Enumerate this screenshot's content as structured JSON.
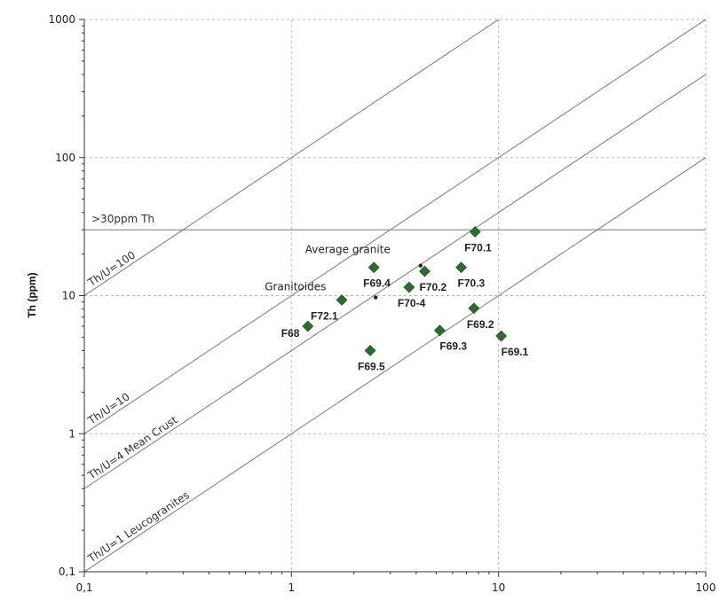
{
  "chart_data": {
    "type": "scatter",
    "title": "",
    "xlabel": "",
    "ylabel": "Th (ppm)",
    "xscale": "log",
    "yscale": "log",
    "xlim": [
      0.1,
      100
    ],
    "ylim": [
      0.1,
      1000
    ],
    "grid": true,
    "x_ticks": [
      {
        "value": 0.1,
        "label": "0,1"
      },
      {
        "value": 1,
        "label": "1"
      },
      {
        "value": 10,
        "label": "10"
      },
      {
        "value": 100,
        "label": "100"
      }
    ],
    "y_ticks": [
      {
        "value": 0.1,
        "label": "0,1"
      },
      {
        "value": 1,
        "label": "1"
      },
      {
        "value": 10,
        "label": "10"
      },
      {
        "value": 100,
        "label": "100"
      },
      {
        "value": 1000,
        "label": "1000"
      }
    ],
    "marker_color": "#2e6b2e",
    "points": [
      {
        "label": "F70.1",
        "x": 7.7,
        "y": 29
      },
      {
        "label": "F69.4",
        "x": 2.5,
        "y": 16
      },
      {
        "label": "F70.2",
        "x": 4.4,
        "y": 15
      },
      {
        "label": "F70.3",
        "x": 6.6,
        "y": 16
      },
      {
        "label": "F70-4",
        "x": 3.7,
        "y": 11.5
      },
      {
        "label": "F72.1",
        "x": 1.75,
        "y": 9.3
      },
      {
        "label": "F69.2",
        "x": 7.6,
        "y": 8.1
      },
      {
        "label": "F68",
        "x": 1.2,
        "y": 6
      },
      {
        "label": "F69.3",
        "x": 5.2,
        "y": 5.6
      },
      {
        "label": "F69.1",
        "x": 10.3,
        "y": 5.1
      },
      {
        "label": "F69.5",
        "x": 2.4,
        "y": 4.0
      }
    ],
    "reference_lines": [
      {
        "label": "Th/U=100",
        "ratio": 100
      },
      {
        "label": "Th/U=10",
        "ratio": 10
      },
      {
        "label": "Th/U=4 Mean Crust",
        "ratio": 4
      },
      {
        "label": "Th/U=1 Leucogranites",
        "ratio": 1
      }
    ],
    "horizontal_line": {
      "label": ">30ppm Th",
      "y": 30
    },
    "annotations": [
      {
        "label": "Average granite",
        "x": 4.2,
        "y": 16.5,
        "marker": "dot"
      },
      {
        "label": "Granitoides",
        "x": 2.55,
        "y": 9.7,
        "marker": "dot"
      }
    ]
  }
}
